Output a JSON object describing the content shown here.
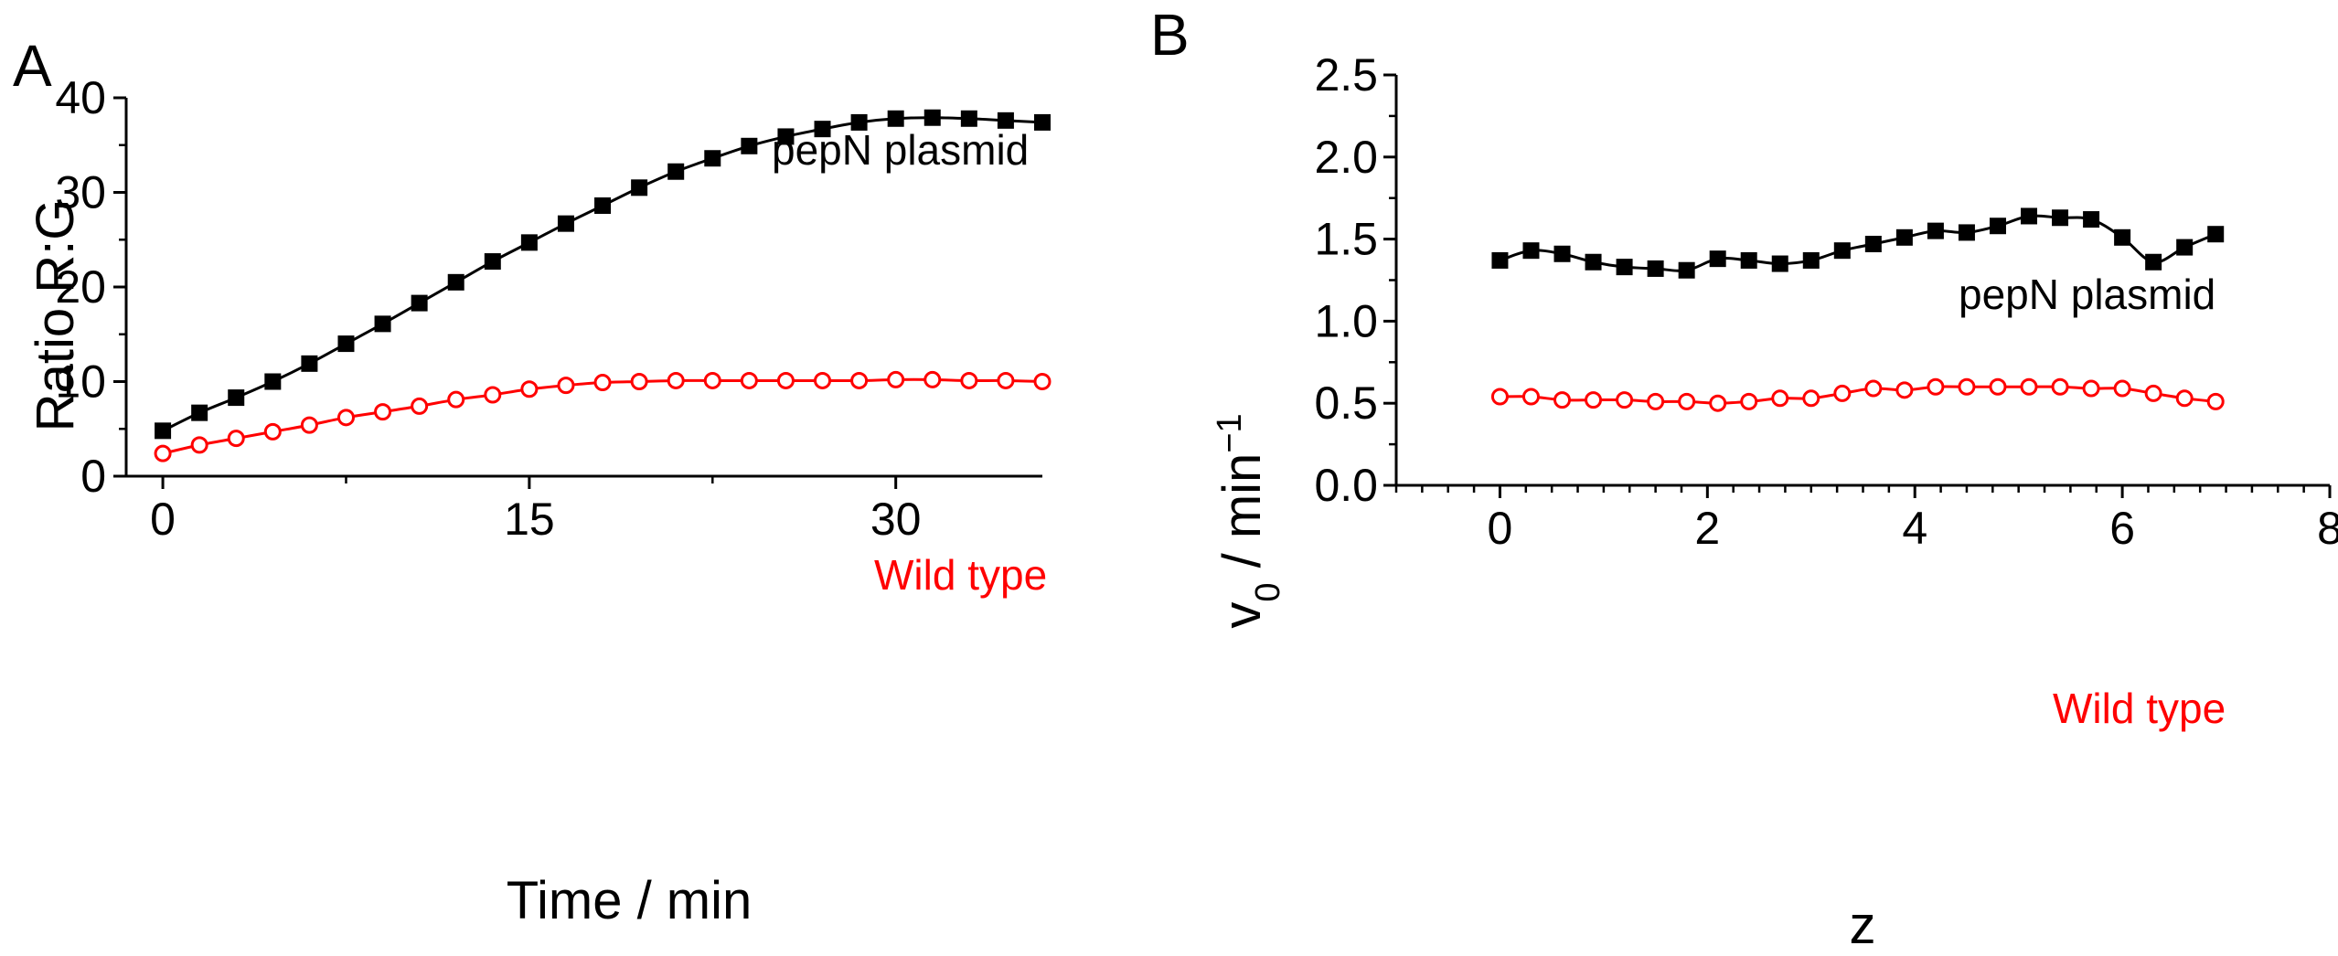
{
  "chart_data": [
    {
      "panel_label": "A",
      "type": "line",
      "xlabel": "Time / min",
      "ylabel": "Ratio R:G",
      "xlim": [
        -1.5,
        36
      ],
      "ylim": [
        0,
        40
      ],
      "xticks": [
        0,
        15,
        30
      ],
      "xtick_labels": [
        "0",
        "15",
        "30"
      ],
      "yticks": [
        0,
        10,
        20,
        30,
        40
      ],
      "ytick_labels": [
        "0",
        "10",
        "20",
        "30",
        "40"
      ],
      "grid": false,
      "series": [
        {
          "name": "pepN plasmid",
          "color": "#000000",
          "marker": "filled-square",
          "x": [
            0,
            1.5,
            3,
            4.5,
            6,
            7.5,
            9,
            10.5,
            12,
            13.5,
            15,
            16.5,
            18,
            19.5,
            21,
            22.5,
            24,
            25.5,
            27,
            28.5,
            30,
            31.5,
            33,
            34.5,
            36
          ],
          "y": [
            4.8,
            6.7,
            8.3,
            10.0,
            11.9,
            14.0,
            16.1,
            18.3,
            20.5,
            22.7,
            24.7,
            26.7,
            28.6,
            30.5,
            32.2,
            33.6,
            34.9,
            35.9,
            36.7,
            37.4,
            37.8,
            37.9,
            37.8,
            37.6,
            37.4
          ]
        },
        {
          "name": "Wild type",
          "color": "#ff0000",
          "marker": "open-circle",
          "x": [
            0,
            1.5,
            3,
            4.5,
            6,
            7.5,
            9,
            10.5,
            12,
            13.5,
            15,
            16.5,
            18,
            19.5,
            21,
            22.5,
            24,
            25.5,
            27,
            28.5,
            30,
            31.5,
            33,
            34.5,
            36
          ],
          "y": [
            2.4,
            3.3,
            4.0,
            4.7,
            5.4,
            6.2,
            6.8,
            7.4,
            8.1,
            8.6,
            9.2,
            9.6,
            9.9,
            10.0,
            10.1,
            10.1,
            10.1,
            10.1,
            10.1,
            10.1,
            10.2,
            10.2,
            10.1,
            10.1,
            10.0
          ]
        }
      ]
    },
    {
      "panel_label": "B",
      "type": "line",
      "xlabel": "z",
      "ylabel_main": "v",
      "ylabel_sub": "0",
      "ylabel_unit": " / min",
      "ylabel_sup": "−1",
      "xlim": [
        -1,
        8
      ],
      "ylim": [
        0,
        2.5
      ],
      "xticks": [
        0,
        2,
        4,
        6,
        8
      ],
      "xtick_labels": [
        "0",
        "2",
        "4",
        "6",
        "8"
      ],
      "yticks": [
        0,
        0.5,
        1.0,
        1.5,
        2.0,
        2.5
      ],
      "ytick_labels": [
        "0.0",
        "0.5",
        "1.0",
        "1.5",
        "2.0",
        "2.5"
      ],
      "grid": false,
      "series": [
        {
          "name": "pepN plasmid",
          "color": "#000000",
          "marker": "filled-square",
          "x": [
            0,
            0.3,
            0.6,
            0.9,
            1.2,
            1.5,
            1.8,
            2.1,
            2.4,
            2.7,
            3.0,
            3.3,
            3.6,
            3.9,
            4.2,
            4.5,
            4.8,
            5.1,
            5.4,
            5.7,
            6.0,
            6.3,
            6.6,
            6.9
          ],
          "y": [
            1.37,
            1.43,
            1.41,
            1.36,
            1.33,
            1.32,
            1.31,
            1.38,
            1.37,
            1.35,
            1.37,
            1.43,
            1.47,
            1.51,
            1.55,
            1.54,
            1.58,
            1.64,
            1.63,
            1.62,
            1.51,
            1.36,
            1.45,
            1.53
          ]
        },
        {
          "name": "Wild type",
          "color": "#ff0000",
          "marker": "open-circle",
          "x": [
            0,
            0.3,
            0.6,
            0.9,
            1.2,
            1.5,
            1.8,
            2.1,
            2.4,
            2.7,
            3.0,
            3.3,
            3.6,
            3.9,
            4.2,
            4.5,
            4.8,
            5.1,
            5.4,
            5.7,
            6.0,
            6.3,
            6.6,
            6.9
          ],
          "y": [
            0.54,
            0.54,
            0.52,
            0.52,
            0.52,
            0.51,
            0.51,
            0.5,
            0.51,
            0.53,
            0.53,
            0.56,
            0.59,
            0.58,
            0.6,
            0.6,
            0.6,
            0.6,
            0.6,
            0.59,
            0.59,
            0.56,
            0.53,
            0.51
          ]
        }
      ]
    }
  ]
}
